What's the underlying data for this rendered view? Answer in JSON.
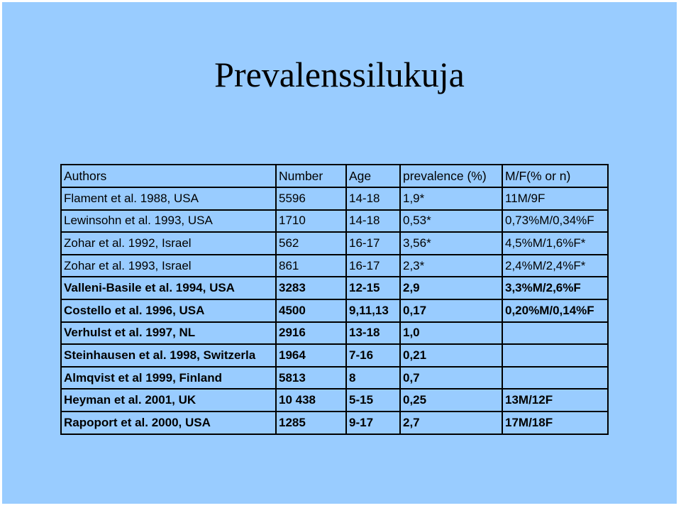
{
  "title": "Prevalenssilukuja",
  "table": {
    "headers": [
      "Authors",
      "Number",
      "Age",
      "prevalence (%)",
      "M/F(% or n)"
    ],
    "rows": [
      {
        "bold": false,
        "cells": [
          "Flament et al. 1988, USA",
          "5596",
          "14-18",
          "1,9*",
          "11M/9F"
        ]
      },
      {
        "bold": false,
        "cells": [
          "Lewinsohn et al. 1993, USA",
          "1710",
          "14-18",
          "0,53*",
          "0,73%M/0,34%F"
        ]
      },
      {
        "bold": false,
        "cells": [
          "Zohar et al. 1992, Israel",
          "562",
          "16-17",
          "3,56*",
          "4,5%M/1,6%F*"
        ]
      },
      {
        "bold": false,
        "cells": [
          "Zohar et al. 1993, Israel",
          "861",
          "16-17",
          "2,3*",
          "2,4%M/2,4%F*"
        ]
      },
      {
        "bold": true,
        "cells": [
          "Valleni-Basile et al. 1994, USA",
          "3283",
          "12-15",
          "2,9",
          "3,3%M/2,6%F"
        ]
      },
      {
        "bold": true,
        "cells": [
          "Costello et al. 1996, USA",
          "4500",
          "9,11,13",
          "0,17",
          "0,20%M/0,14%F"
        ]
      },
      {
        "bold": true,
        "cells": [
          "Verhulst et al. 1997, NL",
          "2916",
          "13-18",
          "1,0",
          ""
        ]
      },
      {
        "bold": true,
        "cells": [
          "Steinhausen et al. 1998, Switzerla",
          "1964",
          "7-16",
          "0,21",
          ""
        ]
      },
      {
        "bold": true,
        "cells": [
          "Almqvist et al 1999, Finland",
          "5813",
          "8",
          "0,7",
          ""
        ]
      },
      {
        "bold": true,
        "cells": [
          "Heyman et al. 2001, UK",
          "10 438",
          "5-15",
          "0,25",
          "13M/12F"
        ]
      },
      {
        "bold": true,
        "cells": [
          "Rapoport et al. 2000, USA",
          "1285",
          "9-17",
          "2,7",
          "17M/18F"
        ]
      }
    ]
  }
}
